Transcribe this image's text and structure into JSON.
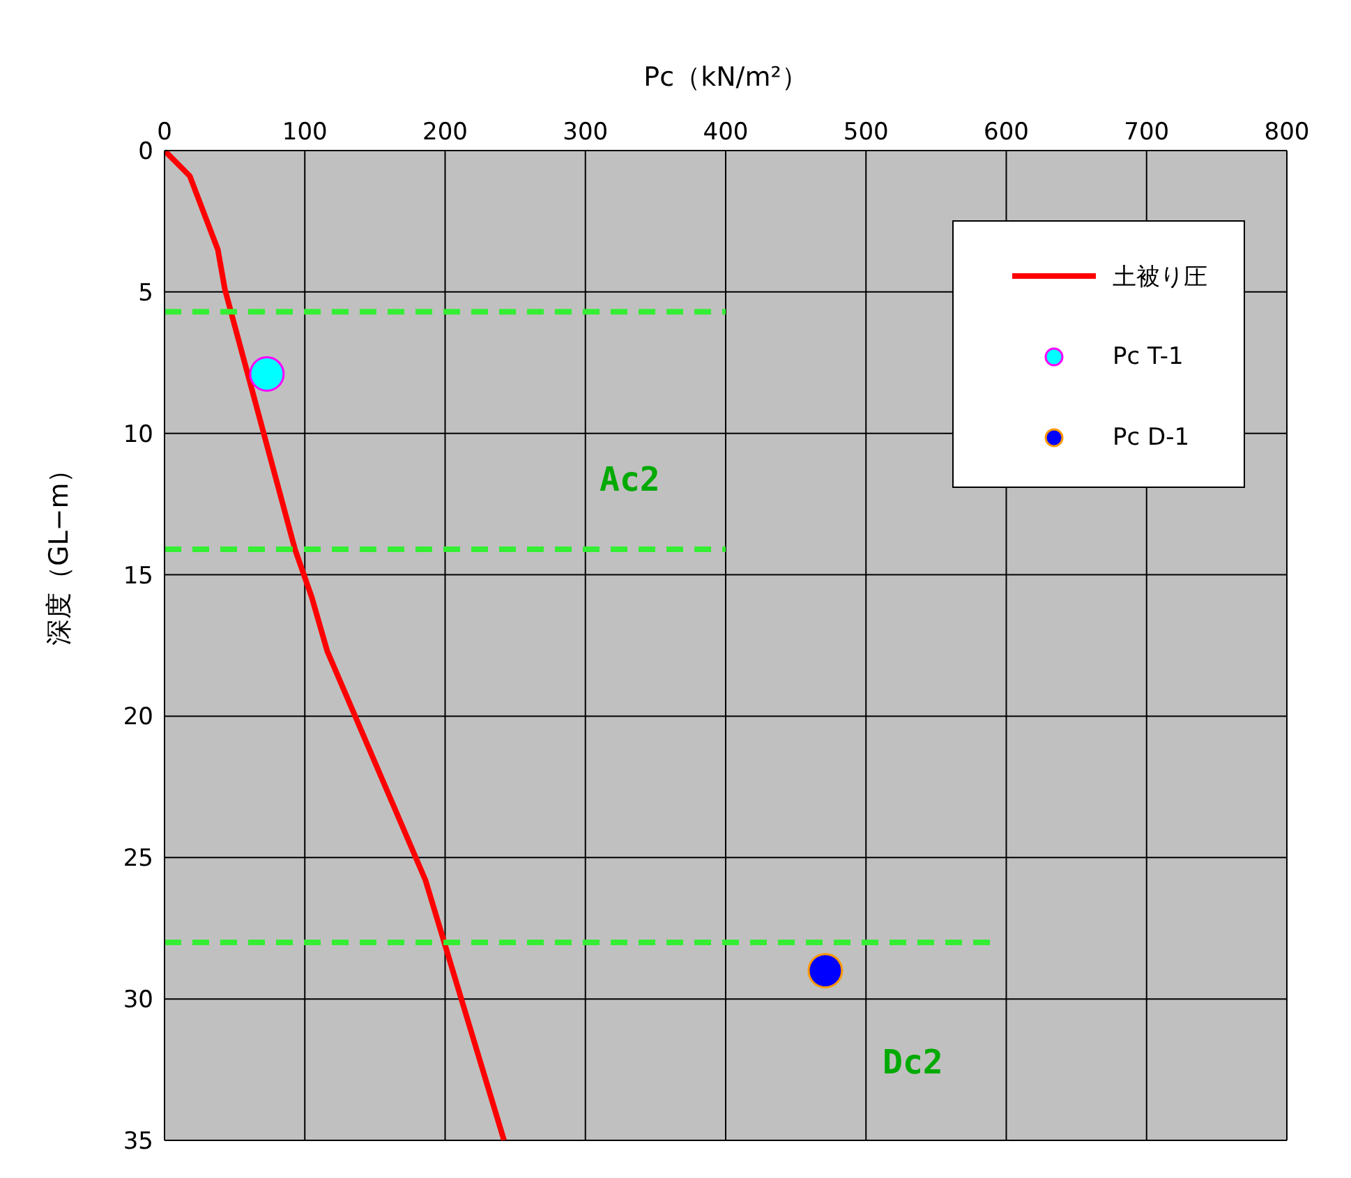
{
  "chart_data": {
    "type": "line",
    "xlabel": "Pc（kN/m²）",
    "ylabel": "深度（GL−m）",
    "xlim": [
      0,
      800
    ],
    "xticks": [
      0,
      100,
      200,
      300,
      400,
      500,
      600,
      700,
      800
    ],
    "ylim": [
      35,
      0
    ],
    "yticks": [
      0,
      5,
      10,
      15,
      20,
      25,
      30,
      35
    ],
    "grid": true,
    "legend": "top right",
    "series": [
      {
        "name": "土被り圧",
        "color": "#ff0000",
        "line_style": "solid",
        "marker": "none",
        "x": [
          0,
          18,
          38,
          43,
          93,
          105,
          116,
          186,
          242
        ],
        "values": [
          0,
          0.9,
          3.5,
          4.9,
          14.1,
          15.8,
          17.7,
          25.8,
          35
        ]
      },
      {
        "name": "Pc T-1",
        "type": "scatter",
        "color": "#00ffff",
        "marker": "circle",
        "x": [
          73
        ],
        "values": [
          7.9
        ]
      },
      {
        "name": "Pc D-1",
        "type": "scatter",
        "color": "#0000ff",
        "marker": "circle",
        "x": [
          471
        ],
        "values": [
          29
        ]
      },
      {
        "type": "line",
        "color": "#33ee33",
        "line_style": "dashed",
        "marker": "none",
        "x": [
          0,
          400
        ],
        "values": [
          5.7,
          5.7
        ]
      },
      {
        "type": "line",
        "color": "#33ee33",
        "line_style": "dashed",
        "marker": "none",
        "x": [
          0,
          400
        ],
        "values": [
          14.1,
          14.1
        ]
      },
      {
        "type": "line",
        "color": "#33ee33",
        "line_style": "dashed",
        "marker": "none",
        "x": [
          0,
          590
        ],
        "values": [
          28,
          28
        ]
      }
    ],
    "annotations": [
      "Ac2",
      "Dc2"
    ]
  }
}
